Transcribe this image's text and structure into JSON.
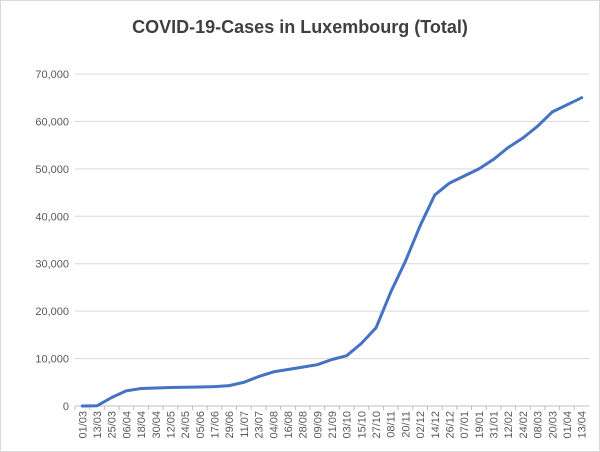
{
  "chart_data": {
    "type": "line",
    "title": "COVID-19-Cases in Luxembourg (Total)",
    "xlabel": "",
    "ylabel": "",
    "ylim": [
      0,
      70000
    ],
    "yticks": [
      "0",
      "10,000",
      "20,000",
      "30,000",
      "40,000",
      "50,000",
      "60,000",
      "70,000"
    ],
    "grid": "horizontal",
    "legend": "none",
    "line_color": "#4472c4",
    "x": [
      "01/03",
      "13/03",
      "25/03",
      "06/04",
      "18/04",
      "30/04",
      "12/05",
      "24/05",
      "05/06",
      "17/06",
      "29/06",
      "11/07",
      "23/07",
      "04/08",
      "16/08",
      "28/08",
      "09/09",
      "21/09",
      "03/10",
      "15/10",
      "27/10",
      "08/11",
      "20/11",
      "02/12",
      "14/12",
      "26/12",
      "07/01",
      "19/01",
      "31/01",
      "12/02",
      "24/02",
      "08/03",
      "20/03",
      "01/04",
      "13/04"
    ],
    "series": [
      {
        "values": [
          0,
          50,
          1800,
          3200,
          3700,
          3800,
          3900,
          3950,
          4000,
          4100,
          4300,
          5000,
          6200,
          7200,
          7700,
          8200,
          8700,
          9800,
          10600,
          13200,
          16500,
          24000,
          30500,
          38000,
          44500,
          47000,
          48500,
          50000,
          52000,
          54500,
          56500,
          59000,
          62000,
          63500,
          65000
        ]
      }
    ]
  }
}
